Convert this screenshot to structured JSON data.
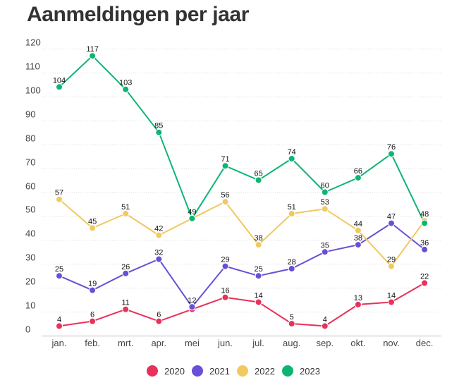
{
  "title": "Aanmeldingen per jaar",
  "chart_data": {
    "type": "line",
    "title": "Aanmeldingen per jaar",
    "xlabel": "",
    "ylabel": "",
    "categories": [
      "jan.",
      "feb.",
      "mrt.",
      "apr.",
      "mei",
      "jun.",
      "jul.",
      "aug.",
      "sep.",
      "okt.",
      "nov.",
      "dec."
    ],
    "ylim": [
      0,
      120
    ],
    "yticks": [
      0,
      10,
      20,
      30,
      40,
      50,
      60,
      70,
      80,
      90,
      100,
      110,
      120
    ],
    "grid": true,
    "legend": "bottom",
    "series": [
      {
        "name": "2020",
        "color": "#e8315b",
        "values": [
          4,
          6,
          11,
          6,
          11,
          16,
          14,
          5,
          4,
          13,
          14,
          22
        ]
      },
      {
        "name": "2021",
        "color": "#6a4fd6",
        "values": [
          25,
          19,
          26,
          32,
          12,
          29,
          25,
          28,
          35,
          38,
          47,
          36
        ]
      },
      {
        "name": "2022",
        "color": "#f0c960",
        "values": [
          57,
          45,
          51,
          42,
          49,
          56,
          38,
          51,
          53,
          44,
          29,
          48
        ]
      },
      {
        "name": "2023",
        "color": "#0db574",
        "values": [
          104,
          117,
          103,
          85,
          49,
          71,
          65,
          74,
          60,
          66,
          76,
          47
        ]
      }
    ],
    "data_labels": [
      [
        "4",
        "6",
        "11",
        "6",
        "",
        "16",
        "14",
        "5",
        "4",
        "13",
        "14",
        "22"
      ],
      [
        "25",
        "19",
        "26",
        "32",
        "12",
        "29",
        "25",
        "28",
        "35",
        "38",
        "47",
        "36"
      ],
      [
        "57",
        "45",
        "51",
        "42",
        "",
        "56",
        "38",
        "51",
        "53",
        "44",
        "29",
        "48"
      ],
      [
        "104",
        "117",
        "103",
        "85",
        "49",
        "71",
        "65",
        "74",
        "60",
        "66",
        "76",
        ""
      ]
    ]
  }
}
